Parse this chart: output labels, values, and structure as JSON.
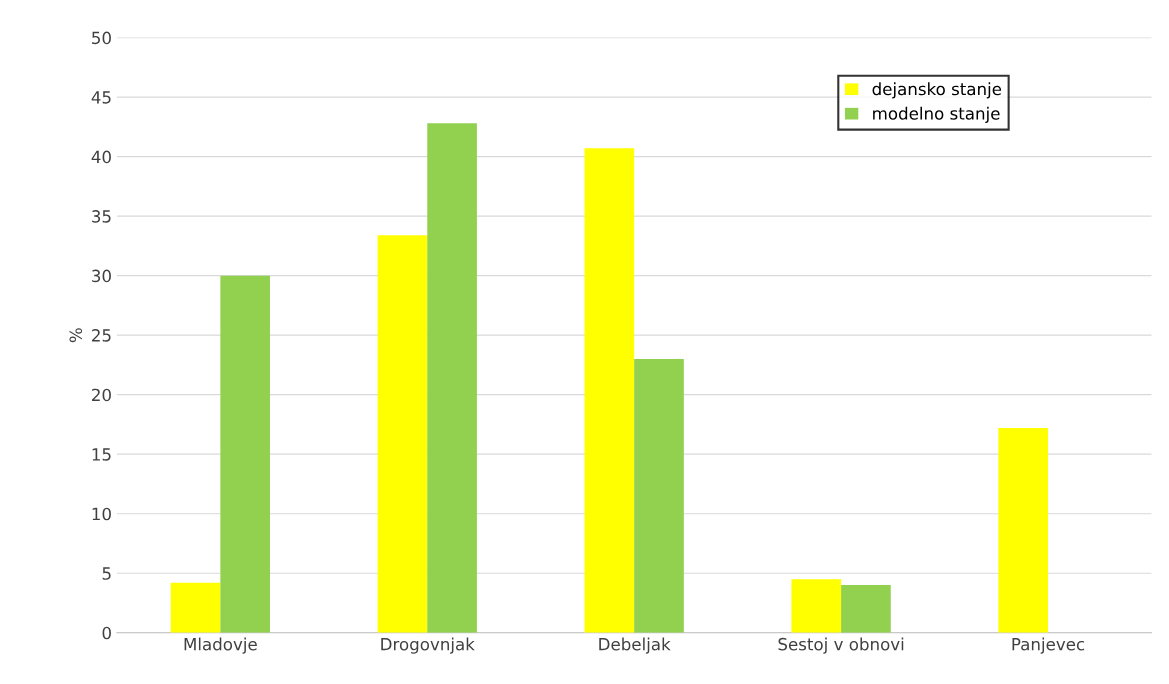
{
  "chart_data": {
    "type": "bar",
    "ylabel": "%",
    "categories": [
      "Mladovje",
      "Drogovnjak",
      "Debeljak",
      "Sestoj v obnovi",
      "Panjevec"
    ],
    "series": [
      {
        "name": "dejansko stanje",
        "color": "#ffff00",
        "values": [
          4.2,
          33.4,
          40.7,
          4.5,
          17.2
        ]
      },
      {
        "name": "modelno stanje",
        "color": "#92d050",
        "values": [
          30.0,
          42.8,
          23.0,
          4.0,
          0
        ]
      }
    ],
    "ylim": [
      0,
      50
    ],
    "yticks": [
      0,
      5,
      10,
      15,
      20,
      25,
      30,
      35,
      40,
      45,
      50
    ],
    "grid": "y",
    "legend": "top right"
  }
}
